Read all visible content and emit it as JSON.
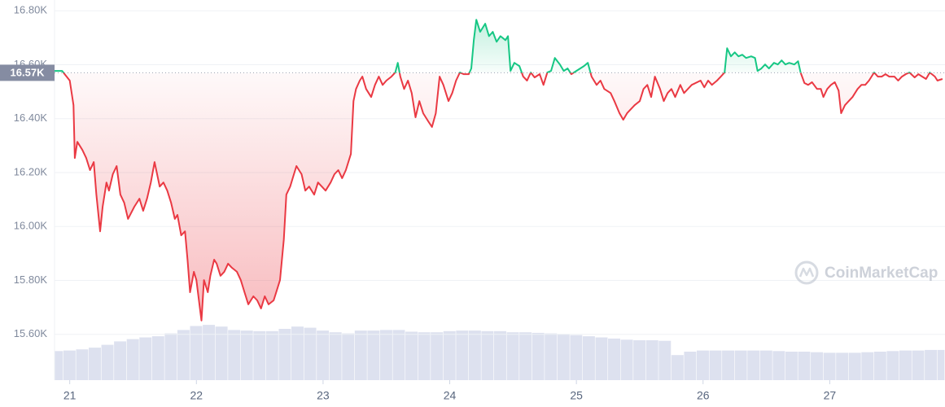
{
  "chart_data": {
    "type": "line",
    "x": [
      20.88,
      20.94,
      21.0,
      21.03,
      21.04,
      21.06,
      21.1,
      21.13,
      21.16,
      21.19,
      21.21,
      21.24,
      21.26,
      21.29,
      21.31,
      21.34,
      21.37,
      21.4,
      21.43,
      21.46,
      21.51,
      21.55,
      21.58,
      21.61,
      21.64,
      21.67,
      21.71,
      21.74,
      21.77,
      21.8,
      21.83,
      21.85,
      21.88,
      21.91,
      21.93,
      21.95,
      21.98,
      22.0,
      22.02,
      22.04,
      22.06,
      22.09,
      22.11,
      22.14,
      22.16,
      22.19,
      22.22,
      22.25,
      22.28,
      22.32,
      22.35,
      22.38,
      22.41,
      22.45,
      22.48,
      22.51,
      22.54,
      22.57,
      22.61,
      22.64,
      22.66,
      22.69,
      22.71,
      22.74,
      22.77,
      22.79,
      22.83,
      22.86,
      22.89,
      22.93,
      22.96,
      22.99,
      23.02,
      23.06,
      23.09,
      23.12,
      23.15,
      23.18,
      23.22,
      23.24,
      23.26,
      23.29,
      23.31,
      23.34,
      23.38,
      23.41,
      23.44,
      23.47,
      23.5,
      23.54,
      23.57,
      23.59,
      23.61,
      23.64,
      23.67,
      23.7,
      23.73,
      23.76,
      23.79,
      23.83,
      23.86,
      23.89,
      23.92,
      23.95,
      23.99,
      24.02,
      24.05,
      24.08,
      24.11,
      24.15,
      24.17,
      24.19,
      24.21,
      24.24,
      24.28,
      24.31,
      24.34,
      24.37,
      24.4,
      24.44,
      24.46,
      24.48,
      24.51,
      24.55,
      24.58,
      24.61,
      24.64,
      24.67,
      24.71,
      24.74,
      24.77,
      24.8,
      24.83,
      24.87,
      24.9,
      24.93,
      24.96,
      25.0,
      25.03,
      25.06,
      25.09,
      25.12,
      25.16,
      25.19,
      25.22,
      25.27,
      25.3,
      25.34,
      25.37,
      25.4,
      25.43,
      25.46,
      25.5,
      25.53,
      25.56,
      25.59,
      25.62,
      25.66,
      25.69,
      25.72,
      25.75,
      25.78,
      25.82,
      25.85,
      25.88,
      25.91,
      25.98,
      26.01,
      26.04,
      26.07,
      26.11,
      26.14,
      26.17,
      26.19,
      26.22,
      26.25,
      26.28,
      26.31,
      26.34,
      26.38,
      26.41,
      26.43,
      26.46,
      26.49,
      26.52,
      26.56,
      26.59,
      26.62,
      26.65,
      26.68,
      26.72,
      26.75,
      26.77,
      26.8,
      26.83,
      26.86,
      26.9,
      26.93,
      26.95,
      26.98,
      27.01,
      27.04,
      27.07,
      27.09,
      27.12,
      27.15,
      27.18,
      27.22,
      27.25,
      27.28,
      27.31,
      27.35,
      27.38,
      27.41,
      27.44,
      27.47,
      27.51,
      27.54,
      27.57,
      27.6,
      27.63,
      27.67,
      27.7,
      27.73,
      27.76,
      27.79,
      27.83,
      27.85,
      27.89
    ],
    "values": [
      16577,
      16577,
      16541,
      16450,
      16254,
      16314,
      16284,
      16254,
      16209,
      16239,
      16118,
      15982,
      16073,
      16163,
      16133,
      16194,
      16224,
      16118,
      16088,
      16028,
      16073,
      16103,
      16058,
      16103,
      16163,
      16239,
      16148,
      16163,
      16133,
      16088,
      16028,
      16043,
      15967,
      15982,
      15877,
      15756,
      15832,
      15801,
      15726,
      15651,
      15801,
      15756,
      15817,
      15877,
      15862,
      15817,
      15832,
      15862,
      15847,
      15832,
      15801,
      15756,
      15711,
      15741,
      15726,
      15696,
      15741,
      15711,
      15726,
      15771,
      15801,
      15952,
      16118,
      16148,
      16194,
      16224,
      16194,
      16133,
      16148,
      16118,
      16163,
      16148,
      16133,
      16163,
      16194,
      16209,
      16179,
      16209,
      16269,
      16465,
      16510,
      16541,
      16556,
      16510,
      16480,
      16525,
      16556,
      16525,
      16541,
      16556,
      16571,
      16607,
      16556,
      16510,
      16541,
      16495,
      16405,
      16465,
      16420,
      16390,
      16369,
      16420,
      16556,
      16525,
      16465,
      16495,
      16541,
      16571,
      16565,
      16565,
      16586,
      16691,
      16767,
      16722,
      16752,
      16706,
      16722,
      16685,
      16706,
      16691,
      16706,
      16577,
      16607,
      16595,
      16556,
      16541,
      16571,
      16553,
      16565,
      16525,
      16571,
      16577,
      16625,
      16601,
      16577,
      16586,
      16565,
      16577,
      16586,
      16595,
      16607,
      16556,
      16525,
      16541,
      16510,
      16495,
      16465,
      16420,
      16396,
      16420,
      16435,
      16450,
      16465,
      16510,
      16525,
      16480,
      16556,
      16510,
      16465,
      16495,
      16510,
      16480,
      16525,
      16495,
      16510,
      16525,
      16541,
      16516,
      16541,
      16525,
      16541,
      16556,
      16571,
      16661,
      16631,
      16646,
      16631,
      16637,
      16625,
      16631,
      16625,
      16577,
      16586,
      16601,
      16586,
      16607,
      16601,
      16616,
      16601,
      16607,
      16601,
      16613,
      16571,
      16532,
      16525,
      16535,
      16510,
      16510,
      16480,
      16510,
      16525,
      16535,
      16504,
      16420,
      16450,
      16465,
      16480,
      16510,
      16525,
      16525,
      16541,
      16571,
      16556,
      16556,
      16565,
      16556,
      16556,
      16541,
      16556,
      16565,
      16571,
      16553,
      16565,
      16556,
      16547,
      16571,
      16556,
      16541,
      16547
    ],
    "colors": {
      "up": "#16c784",
      "down": "#ea3943"
    },
    "reference_line": {
      "value": 16570,
      "label": "16.57K"
    },
    "volume": {
      "x": [
        20.9,
        21.0,
        21.1,
        21.2,
        21.3,
        21.4,
        21.5,
        21.6,
        21.7,
        21.8,
        21.9,
        22.0,
        22.1,
        22.2,
        22.3,
        22.4,
        22.5,
        22.6,
        22.7,
        22.8,
        22.9,
        23.0,
        23.1,
        23.2,
        23.3,
        23.4,
        23.5,
        23.6,
        23.7,
        23.8,
        23.9,
        24.0,
        24.1,
        24.2,
        24.3,
        24.4,
        24.5,
        24.6,
        24.7,
        24.8,
        24.9,
        25.0,
        25.1,
        25.2,
        25.3,
        25.4,
        25.5,
        25.6,
        25.7,
        25.8,
        25.9,
        26.0,
        26.1,
        26.2,
        26.3,
        26.4,
        26.5,
        26.6,
        26.7,
        26.8,
        26.9,
        27.0,
        27.1,
        27.2,
        27.3,
        27.4,
        27.5,
        27.6,
        27.7,
        27.8,
        27.9
      ],
      "values": [
        51,
        52,
        54,
        57,
        62,
        68,
        72,
        75,
        77,
        82,
        88,
        95,
        97,
        94,
        88,
        87,
        86,
        86,
        90,
        94,
        92,
        87,
        84,
        82,
        87,
        87,
        88,
        88,
        85,
        84,
        84,
        86,
        87,
        87,
        86,
        86,
        84,
        84,
        83,
        82,
        81,
        79,
        77,
        75,
        73,
        71,
        70,
        70,
        69,
        44,
        50,
        52,
        52,
        52,
        52,
        52,
        52,
        51,
        50,
        50,
        49,
        48,
        48,
        48,
        49,
        50,
        51,
        52,
        52,
        53,
        53
      ],
      "axis": "y2",
      "color": "#dde1ef"
    },
    "xlim": [
      20.88,
      27.91
    ],
    "xticks": [
      21,
      22,
      23,
      24,
      25,
      26,
      27
    ],
    "ylim": [
      15430,
      16840
    ],
    "yticks": [
      {
        "value": 15600,
        "label": "15.60K"
      },
      {
        "value": 15800,
        "label": "15.80K"
      },
      {
        "value": 16000,
        "label": "16.00K"
      },
      {
        "value": 16200,
        "label": "16.20K"
      },
      {
        "value": 16400,
        "label": "16.40K"
      },
      {
        "value": 16600,
        "label": "16.60K"
      },
      {
        "value": 16800,
        "label": "16.80K"
      }
    ],
    "y2lim": [
      0,
      100
    ],
    "grid": true,
    "watermark": "CoinMarketCap"
  }
}
